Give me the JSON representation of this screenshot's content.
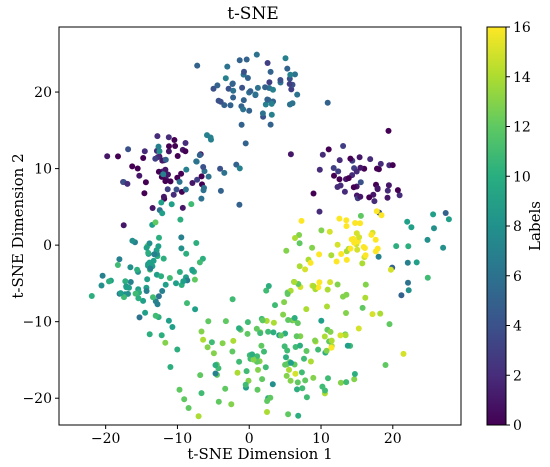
{
  "chart_data": {
    "type": "scatter",
    "title": "t-SNE",
    "xlabel": "t-SNE Dimension 1",
    "ylabel": "t-SNE Dimension 2",
    "xlim": [
      -26.5,
      29.5
    ],
    "ylim": [
      -23.5,
      28.5
    ],
    "xticks": [
      -20,
      -10,
      0,
      10,
      20
    ],
    "yticks": [
      -20,
      -10,
      0,
      10,
      20
    ],
    "colorbar": {
      "label": "Labels",
      "range": [
        0,
        16
      ],
      "ticks": [
        0,
        2,
        4,
        6,
        8,
        10,
        12,
        14,
        16
      ],
      "colormap": "viridis"
    },
    "grid": false,
    "clusters": [
      {
        "label": 5,
        "cx": 1.5,
        "cy": 20.5,
        "sx": 3.4,
        "sy": 2.6,
        "n": 60
      },
      {
        "label": 1,
        "cx": -12.5,
        "cy": 9.5,
        "sx": 4.2,
        "sy": 3.2,
        "n": 50
      },
      {
        "label": 6,
        "cx": -7.0,
        "cy": 9.5,
        "sx": 4.0,
        "sy": 3.0,
        "n": 30
      },
      {
        "label": 9,
        "cx": -13.0,
        "cy": -3.5,
        "sx": 3.6,
        "sy": 3.8,
        "n": 90
      },
      {
        "label": 1,
        "cx": 15.0,
        "cy": 8.5,
        "sx": 3.2,
        "sy": 2.3,
        "n": 50
      },
      {
        "label": 8,
        "cx": 23.0,
        "cy": -0.5,
        "sx": 2.2,
        "sy": 2.6,
        "n": 18
      },
      {
        "label": 14,
        "cx": 10.5,
        "cy": -7.0,
        "sx": 5.2,
        "sy": 4.5,
        "n": 55
      },
      {
        "label": 12,
        "cx": 1.5,
        "cy": -15.0,
        "sx": 6.0,
        "sy": 3.5,
        "n": 90
      },
      {
        "label": 16,
        "cx": 14.0,
        "cy": 0.0,
        "sx": 2.8,
        "sy": 2.8,
        "n": 35
      },
      {
        "label": 11,
        "cx": 5.0,
        "cy": -12.0,
        "sx": 4.0,
        "sy": 3.5,
        "n": 30
      }
    ]
  }
}
